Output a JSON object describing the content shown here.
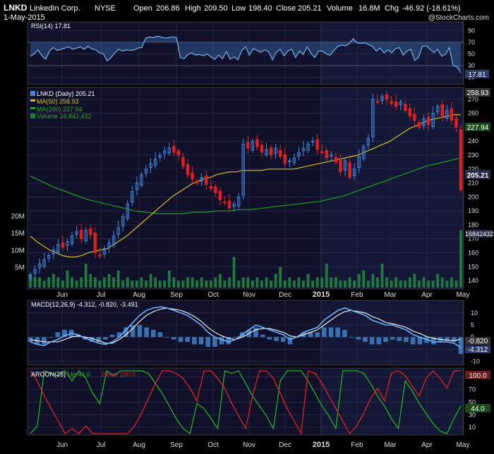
{
  "header": {
    "symbol": "LNKD",
    "company": "LinkedIn Corp.",
    "exchange": "NYSE",
    "date": "1-May-2015",
    "open_label": "Open",
    "open": "206.86",
    "high_label": "High",
    "high": "209.50",
    "low_label": "Low",
    "low": "198.40",
    "close_label": "Close",
    "close": "205.21",
    "volume_label": "Volume",
    "volume": "16.8M",
    "chg_label": "Chg",
    "chg": "-46.92 (-18.61%)",
    "copyright": "@StockCharts.com"
  },
  "colors": {
    "background": "#000000",
    "panel": "#10102a",
    "panel_alt": "#141836",
    "grid": "#2c3048",
    "up": "#3f88d8",
    "down": "#e02020",
    "rsi": "#6fa8e0",
    "ma50": "#d8c020",
    "ma200": "#20a020",
    "volume": "#1d7a3a",
    "macd": "#6fb4ff",
    "signal": "#ffffff",
    "histogram": "#3a70b0",
    "aroon_up": "#20b020",
    "aroon_down": "#e02020"
  },
  "chart_data": [
    {
      "type": "line",
      "name": "rsi",
      "legend": "RSI(14) 17.81",
      "y_ticks": [
        "90",
        "70",
        "50",
        "30",
        "10"
      ],
      "ylim": [
        0,
        100
      ],
      "last_value_label": "17.81",
      "series": [
        {
          "name": "RSI(14)",
          "values": [
            46,
            50,
            57,
            47,
            41,
            55,
            61,
            56,
            58,
            60,
            62,
            58,
            60,
            62,
            58,
            63,
            59,
            57,
            52,
            50,
            38,
            44,
            52,
            58,
            55,
            57,
            56,
            57,
            60,
            61,
            77,
            79,
            78,
            80,
            79,
            77,
            78,
            79,
            78,
            44,
            42,
            49,
            52,
            48,
            49,
            47,
            50,
            45,
            41,
            48,
            42,
            54,
            41,
            45,
            40,
            56,
            62,
            48,
            59,
            56,
            53,
            57,
            54,
            40,
            53,
            58,
            47,
            55,
            58,
            44,
            55,
            49,
            62,
            51,
            44,
            55,
            55,
            50,
            48,
            56,
            63,
            65,
            64,
            68,
            76,
            69,
            68,
            69,
            66,
            63,
            55,
            60,
            52,
            57,
            52,
            59,
            61,
            48,
            55,
            58,
            39,
            44,
            63,
            64,
            58,
            52,
            58,
            46,
            49,
            61,
            30,
            28,
            17.81
          ]
        }
      ]
    },
    {
      "type": "candlestick",
      "name": "price",
      "legend": [
        "LNKD (Daily) 205.21",
        "MA(50) 258.93",
        "MA(200) 227.94",
        "Volume 16,842,432"
      ],
      "x_tick_labels": [
        "Jun",
        "Jul",
        "Aug",
        "Sep",
        "Oct",
        "Nov",
        "Dec",
        "2015",
        "Feb",
        "Mar",
        "Apr",
        "May"
      ],
      "y_ticks": [
        "270",
        "260",
        "250",
        "240",
        "230",
        "220",
        "210",
        "200",
        "190",
        "180",
        "170",
        "160",
        "150",
        "140"
      ],
      "volume_ticks": [
        "20M",
        "15M",
        "10M",
        "5M"
      ],
      "ylim": [
        135,
        277
      ],
      "price_labels": {
        "ma50": "258.93",
        "ma200": "227.94",
        "close": "205.21",
        "volume": "16842432"
      },
      "close": [
        144,
        148,
        152,
        155,
        158,
        162,
        166,
        164,
        168,
        172,
        175,
        170,
        176,
        173,
        160,
        158,
        163,
        167,
        172,
        178,
        186,
        195,
        204,
        210,
        216,
        220,
        224,
        227,
        230,
        233,
        235,
        232,
        230,
        222,
        216,
        213,
        210,
        214,
        209,
        206,
        203,
        198,
        196,
        192,
        195,
        200,
        238,
        235,
        240,
        236,
        232,
        234,
        230,
        235,
        229,
        224,
        226,
        228,
        232,
        235,
        238,
        240,
        234,
        232,
        228,
        230,
        225,
        218,
        226,
        214,
        220,
        229,
        236,
        242,
        270,
        268,
        272,
        270,
        267,
        265,
        268,
        262,
        258,
        255,
        250,
        256,
        252,
        260,
        265,
        258,
        262,
        255,
        250,
        205
      ],
      "ma50": [
        172,
        168,
        165,
        162,
        160,
        158,
        157,
        157,
        158,
        160,
        161,
        162,
        163,
        166,
        169,
        172,
        176,
        180,
        184,
        188,
        192,
        196,
        200,
        203,
        206,
        209,
        211,
        213,
        214,
        216,
        217,
        218,
        218,
        219,
        219,
        219,
        219,
        220,
        220,
        220,
        220,
        220,
        221,
        222,
        223,
        224,
        225,
        226,
        227,
        228,
        229,
        230,
        232,
        234,
        236,
        238,
        240,
        243,
        246,
        249,
        251,
        253,
        255,
        256,
        257,
        258,
        259,
        258.93
      ],
      "ma200": [
        215,
        211,
        207,
        204,
        201,
        198,
        196,
        194,
        192,
        190,
        189,
        188,
        188,
        188,
        189,
        189,
        190,
        190,
        191,
        191,
        192,
        193,
        194,
        195,
        196,
        197,
        199,
        201,
        204,
        207,
        210,
        213,
        216,
        219,
        222,
        224,
        226,
        227.94
      ],
      "volume_millions": [
        4,
        3,
        3,
        2,
        3,
        4,
        3,
        2,
        5,
        3,
        2,
        3,
        7,
        4,
        3,
        2,
        3,
        4,
        3,
        5,
        2,
        3,
        2,
        2,
        3,
        2,
        4,
        3,
        2,
        2,
        5,
        3,
        2,
        2,
        3,
        3,
        2,
        3,
        2,
        2,
        3,
        4,
        2,
        3,
        9,
        2,
        3,
        3,
        2,
        3,
        2,
        3,
        2,
        4,
        6,
        2,
        3,
        2,
        3,
        2,
        4,
        2,
        3,
        3,
        7,
        3,
        3,
        2,
        2,
        3,
        2,
        4,
        5,
        2,
        4,
        3,
        7,
        3,
        2,
        3,
        2,
        2,
        3,
        4,
        2,
        3,
        2,
        2,
        4,
        3,
        2,
        3,
        2,
        16.8
      ]
    },
    {
      "type": "line",
      "name": "macd",
      "legend": "MACD(12,26,9) -4.312, -0.820, -3.491",
      "y_ticks": [
        "10",
        "5",
        "0",
        "-5",
        "-10"
      ],
      "ylim": [
        -11,
        14
      ],
      "value_labels": [
        "-0.820",
        "-4.312"
      ],
      "series": [
        {
          "name": "MACD",
          "values": [
            -2,
            -3,
            -3.5,
            -2,
            -1,
            0.5,
            1.5,
            1,
            -0.5,
            -1.5,
            -2.5,
            -3,
            -2,
            0,
            3,
            6,
            9,
            11,
            12,
            12.5,
            12,
            11,
            10,
            9,
            7,
            5,
            2,
            0,
            -1,
            -2,
            -1,
            1,
            3,
            5,
            4,
            3,
            2,
            1,
            -1,
            0,
            2,
            3,
            4,
            7,
            9,
            11,
            12,
            11,
            10,
            9,
            7,
            6,
            5,
            5,
            4,
            3,
            1,
            0,
            -1,
            -2,
            -2,
            -2,
            -2.5,
            -4.312
          ]
        },
        {
          "name": "Signal",
          "values": [
            -1,
            -1.5,
            -2,
            -2,
            -2,
            -1,
            0,
            0.5,
            0,
            -0.5,
            -1.5,
            -2.5,
            -2.5,
            -1,
            1,
            3.5,
            6.5,
            9,
            10.5,
            11.5,
            12,
            11.5,
            11,
            10,
            8.5,
            6.5,
            4,
            2,
            0.5,
            -0.5,
            -1,
            0,
            1.5,
            3,
            3.5,
            3.5,
            2.8,
            2,
            0.5,
            0,
            1,
            2,
            3,
            5,
            7,
            9,
            10.5,
            11,
            10.5,
            10,
            8.5,
            7.5,
            6,
            5.5,
            4.8,
            4,
            2.5,
            1.5,
            0.2,
            -0.5,
            -1,
            -1.2,
            -1.5,
            -0.82
          ]
        }
      ]
    },
    {
      "type": "line",
      "name": "aroon",
      "legend": [
        "AROON(25)",
        "Up 44.0",
        "Down 100.0"
      ],
      "y_ticks": [
        "90",
        "70",
        "50",
        "30",
        "10"
      ],
      "ylim": [
        0,
        100
      ],
      "value_labels": [
        "100.0",
        "44.0"
      ],
      "series": [
        {
          "name": "Up",
          "values": [
            0,
            12,
            100,
            96,
            92,
            100,
            84,
            100,
            88,
            64,
            48,
            100,
            92,
            100,
            100,
            100,
            100,
            96,
            80,
            64,
            44,
            24,
            8,
            0,
            48,
            40,
            24,
            8,
            100,
            96,
            100,
            80,
            60,
            44,
            28,
            8,
            84,
            100,
            100,
            100,
            84,
            64,
            44,
            28,
            8,
            100,
            100,
            100,
            96,
            80,
            60,
            44,
            24,
            8,
            84,
            68,
            48,
            32,
            16,
            4,
            0,
            24,
            44
          ]
        },
        {
          "name": "Down",
          "values": [
            100,
            84,
            60,
            40,
            20,
            0,
            8,
            0,
            12,
            0,
            0,
            0,
            0,
            0,
            0,
            12,
            32,
            56,
            80,
            100,
            100,
            96,
            88,
            72,
            52,
            100,
            100,
            88,
            72,
            48,
            28,
            8,
            60,
            100,
            100,
            88,
            64,
            40,
            20,
            0,
            100,
            96,
            80,
            60,
            40,
            20,
            0,
            12,
            32,
            56,
            72,
            52,
            96,
            100,
            92,
            76,
            60,
            88,
            100,
            88,
            72,
            100,
            100
          ]
        }
      ]
    }
  ]
}
